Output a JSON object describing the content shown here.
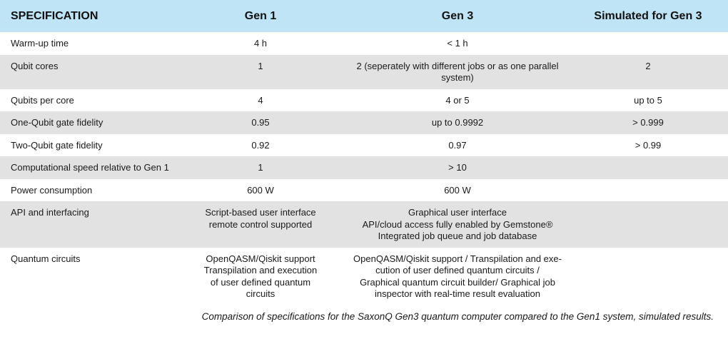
{
  "table": {
    "headers": [
      "SPECIFICATION",
      "Gen 1",
      "Gen 3",
      "Simulated for Gen 3"
    ],
    "rows": [
      [
        "Warm-up time",
        "4 h",
        "< 1 h",
        ""
      ],
      [
        "Qubit cores",
        "1",
        "2 (seperately with different jobs  or as one parallel\nsystem)",
        "2"
      ],
      [
        "Qubits per core",
        "4",
        "4 or 5",
        "up to 5"
      ],
      [
        "One-Qubit gate fidelity",
        "0.95",
        "up to 0.9992",
        "> 0.999"
      ],
      [
        "Two-Qubit gate fidelity",
        "0.92",
        "0.97",
        "> 0.99"
      ],
      [
        "Computational speed relative to Gen 1",
        "1",
        "> 10",
        ""
      ],
      [
        "Power consumption",
        "600 W",
        "600 W",
        ""
      ],
      [
        "API and interfacing",
        "Script-based user interface\nremote control supported",
        "Graphical user interface\nAPI/cloud access fully enabled by Gemstone®\nIntegrated job queue and job database",
        ""
      ],
      [
        "Quantum circuits",
        "OpenQASM/Qiskit support\nTranspilation and execution\nof user defined quantum\ncircuits",
        "OpenQASM/Qiskit support / Transpilation and exe-\ncution of user defined quantum circuits /\nGraphical quantum circuit builder/ Graphical job\ninspector with real-time result evaluation",
        ""
      ]
    ]
  },
  "caption": "Comparison of specifications for the SaxonQ Gen3 quantum computer compared to the Gen1 system, simulated results.",
  "colors": {
    "header_bg": "#bfe4f6",
    "shade_bg": "#e2e2e2"
  }
}
